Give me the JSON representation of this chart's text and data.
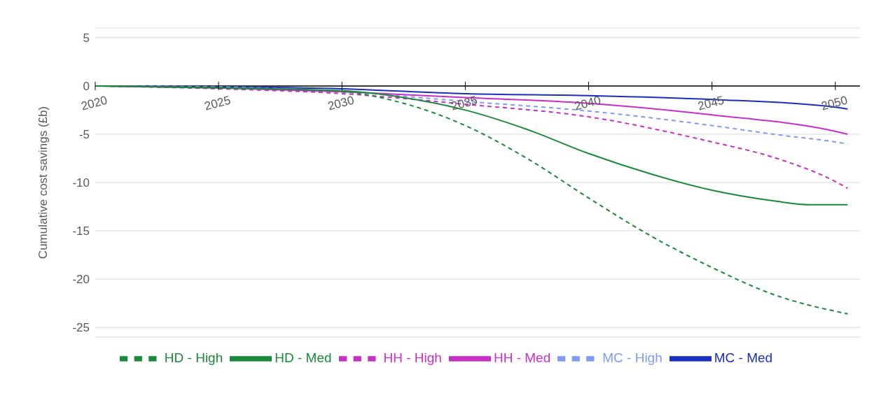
{
  "chart_data": {
    "type": "line",
    "ylabel": "Cumulative cost savings (£b)",
    "xlim": [
      2020,
      2051
    ],
    "xticks": [
      2020,
      2025,
      2030,
      2035,
      2040,
      2045,
      2050
    ],
    "ylim": [
      -26,
      6
    ],
    "yticks": [
      -25,
      -20,
      -15,
      -10,
      -5,
      0,
      5
    ],
    "grid": "y",
    "legend": "bottom",
    "marker": "none",
    "series": [
      {
        "name": "MC - Med",
        "color": "#1a2fbf",
        "line_style": "solid",
        "x": [
          2020,
          2025,
          2030,
          2035,
          2040,
          2045,
          2050,
          2050.5
        ],
        "values": [
          0,
          -0.1,
          -0.3,
          -0.8,
          -1.0,
          -1.4,
          -2.2,
          -2.4
        ]
      },
      {
        "name": "MC - High",
        "color": "#7f9bf5",
        "line_style": "dashed",
        "x": [
          2020,
          2025,
          2030,
          2035,
          2040,
          2045,
          2047.5,
          2050,
          2050.5
        ],
        "values": [
          0,
          -0.1,
          -0.6,
          -1.6,
          -2.6,
          -4.1,
          -5.0,
          -5.8,
          -6.0
        ]
      },
      {
        "name": "HH - Med",
        "color": "#c82fc8",
        "line_style": "solid",
        "x": [
          2020,
          2025,
          2030,
          2035,
          2040,
          2045,
          2050,
          2050.5
        ],
        "values": [
          0,
          -0.2,
          -0.6,
          -1.2,
          -1.8,
          -3.0,
          -4.7,
          -5.0
        ]
      },
      {
        "name": "HH - High",
        "color": "#c82fc8",
        "line_style": "dashed",
        "x": [
          2020,
          2025,
          2030,
          2035,
          2040,
          2045,
          2047.5,
          2050,
          2050.5
        ],
        "values": [
          0,
          -0.3,
          -0.8,
          -1.9,
          -3.2,
          -5.8,
          -7.4,
          -9.9,
          -10.6
        ]
      },
      {
        "name": "HD - Med",
        "color": "#1a8a3a",
        "line_style": "solid",
        "x": [
          2020,
          2025,
          2030,
          2032.5,
          2035,
          2037.5,
          2040,
          2042.5,
          2045,
          2047.5,
          2049,
          2050.5
        ],
        "values": [
          0,
          -0.2,
          -0.5,
          -1.2,
          -2.5,
          -4.5,
          -7.0,
          -9.1,
          -10.8,
          -11.9,
          -12.3,
          -12.3
        ]
      },
      {
        "name": "HD - High",
        "color": "#1a8a3a",
        "line_style": "dashed",
        "x": [
          2020,
          2025,
          2030,
          2032.5,
          2035,
          2037.5,
          2040,
          2042.5,
          2045,
          2047.5,
          2050.5
        ],
        "values": [
          0,
          -0.2,
          -0.6,
          -1.8,
          -4.1,
          -7.5,
          -11.6,
          -15.5,
          -18.8,
          -21.6,
          -23.6
        ]
      }
    ]
  }
}
